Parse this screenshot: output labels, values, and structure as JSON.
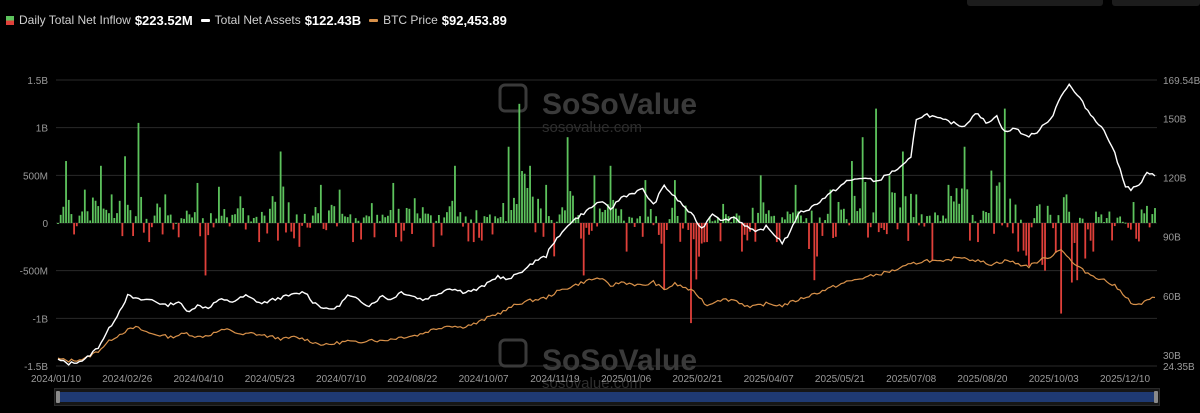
{
  "legend": {
    "inflow_label": "Daily Total Net Inflow",
    "inflow_value": "$223.52M",
    "assets_label": "Total Net Assets",
    "assets_value": "$122.43B",
    "btc_label": "BTC Price",
    "btc_value": "$92,453.89"
  },
  "watermark": {
    "brand": "SoSoValue",
    "url": "sosovalue.com"
  },
  "colors": {
    "inflow_positive": "#5dc35d",
    "inflow_negative": "#e0403a",
    "assets_line": "#ffffff",
    "btc_line": "#d8914a",
    "scroll_track": "#1f3a73"
  },
  "chart_data": {
    "type": "bar",
    "x_ticks": [
      "2024/01/10",
      "2024/02/26",
      "2024/04/10",
      "2024/05/23",
      "2024/07/10",
      "2024/08/22",
      "2024/10/07",
      "2024/11/19",
      "2025/01/06",
      "2025/02/21",
      "2025/04/07",
      "2025/05/21",
      "2025/07/08",
      "2025/08/20",
      "2025/10/03",
      "2025/12/10"
    ],
    "y_left": {
      "ticks": [
        "-1.5B",
        "-1B",
        "-500M",
        "0",
        "500M",
        "1B",
        "1.5B"
      ],
      "min": -1500,
      "max": 1500,
      "unit": "M"
    },
    "y_right": {
      "ticks": [
        "24.35B",
        "30B",
        "60B",
        "90B",
        "120B",
        "150B",
        "169.54B"
      ],
      "min": 24.35,
      "max": 169.54,
      "unit": "B"
    },
    "grid": true,
    "series": [
      {
        "name": "Daily Total Net Inflow",
        "type": "bar",
        "keypoints_M": [
          [
            0,
            0
          ],
          [
            3,
            650
          ],
          [
            6,
            -120
          ],
          [
            10,
            350
          ],
          [
            16,
            600
          ],
          [
            20,
            300
          ],
          [
            25,
            700
          ],
          [
            30,
            1050
          ],
          [
            34,
            -200
          ],
          [
            40,
            300
          ],
          [
            45,
            -150
          ],
          [
            52,
            420
          ],
          [
            55,
            -550
          ],
          [
            60,
            380
          ],
          [
            68,
            280
          ],
          [
            75,
            -200
          ],
          [
            83,
            750
          ],
          [
            90,
            -250
          ],
          [
            98,
            400
          ],
          [
            105,
            350
          ],
          [
            110,
            -200
          ],
          [
            118,
            -150
          ],
          [
            125,
            420
          ],
          [
            133,
            260
          ],
          [
            140,
            -250
          ],
          [
            148,
            600
          ],
          [
            155,
            -200
          ],
          [
            162,
            -120
          ],
          [
            168,
            800
          ],
          [
            172,
            1250
          ],
          [
            176,
            600
          ],
          [
            182,
            400
          ],
          [
            185,
            -350
          ],
          [
            190,
            900
          ],
          [
            196,
            -550
          ],
          [
            200,
            500
          ],
          [
            206,
            600
          ],
          [
            212,
            -300
          ],
          [
            219,
            450
          ],
          [
            226,
            -700
          ],
          [
            230,
            450
          ],
          [
            236,
            -1050
          ],
          [
            242,
            -200
          ],
          [
            248,
            200
          ],
          [
            255,
            -300
          ],
          [
            262,
            500
          ],
          [
            268,
            -200
          ],
          [
            275,
            400
          ],
          [
            282,
            -600
          ],
          [
            288,
            350
          ],
          [
            296,
            650
          ],
          [
            300,
            900
          ],
          [
            305,
            1200
          ],
          [
            310,
            500
          ],
          [
            315,
            750
          ],
          [
            320,
            300
          ],
          [
            326,
            -400
          ],
          [
            332,
            400
          ],
          [
            338,
            800
          ],
          [
            343,
            -200
          ],
          [
            348,
            550
          ],
          [
            353,
            1200
          ],
          [
            358,
            -300
          ],
          [
            362,
            -450
          ],
          [
            368,
            -500
          ],
          [
            374,
            -950
          ],
          [
            380,
            -600
          ],
          [
            386,
            -300
          ],
          [
            392,
            120
          ],
          [
            399,
            -50
          ],
          [
            401,
            220
          ]
        ]
      },
      {
        "name": "Total Net Assets",
        "type": "line",
        "axis": "right",
        "keypoints_B": [
          [
            0,
            27.5
          ],
          [
            4,
            25.5
          ],
          [
            10,
            27.5
          ],
          [
            15,
            34
          ],
          [
            22,
            50
          ],
          [
            26,
            60
          ],
          [
            30,
            58
          ],
          [
            35,
            58
          ],
          [
            40,
            55
          ],
          [
            45,
            57
          ],
          [
            48,
            52
          ],
          [
            52,
            55
          ],
          [
            56,
            54
          ],
          [
            60,
            58
          ],
          [
            65,
            57
          ],
          [
            70,
            60
          ],
          [
            76,
            56
          ],
          [
            80,
            58
          ],
          [
            86,
            60
          ],
          [
            92,
            62
          ],
          [
            95,
            57
          ],
          [
            100,
            53
          ],
          [
            104,
            54
          ],
          [
            108,
            60
          ],
          [
            112,
            58
          ],
          [
            116,
            55
          ],
          [
            121,
            60
          ],
          [
            124,
            58
          ],
          [
            128,
            62
          ],
          [
            132,
            60
          ],
          [
            136,
            58
          ],
          [
            140,
            60
          ],
          [
            146,
            64
          ],
          [
            151,
            62
          ],
          [
            156,
            63
          ],
          [
            160,
            66
          ],
          [
            164,
            70
          ],
          [
            168,
            68
          ],
          [
            172,
            72
          ],
          [
            175,
            74
          ],
          [
            178,
            78
          ],
          [
            182,
            80
          ],
          [
            184,
            86
          ],
          [
            187,
            90
          ],
          [
            190,
            96
          ],
          [
            194,
            100
          ],
          [
            198,
            104
          ],
          [
            202,
            108
          ],
          [
            206,
            104
          ],
          [
            210,
            110
          ],
          [
            214,
            112
          ],
          [
            218,
            114
          ],
          [
            222,
            106
          ],
          [
            226,
            116
          ],
          [
            230,
            110
          ],
          [
            233,
            106
          ],
          [
            237,
            100
          ],
          [
            240,
            94
          ],
          [
            244,
            102
          ],
          [
            248,
            98
          ],
          [
            252,
            100
          ],
          [
            256,
            96
          ],
          [
            260,
            92
          ],
          [
            264,
            95
          ],
          [
            268,
            90
          ],
          [
            270,
            87
          ],
          [
            273,
            92
          ],
          [
            276,
            102
          ],
          [
            280,
            104
          ],
          [
            284,
            108
          ],
          [
            288,
            112
          ],
          [
            294,
            118
          ],
          [
            300,
            120
          ],
          [
            305,
            118
          ],
          [
            310,
            122
          ],
          [
            315,
            126
          ],
          [
            318,
            130
          ],
          [
            320,
            150
          ],
          [
            324,
            152
          ],
          [
            328,
            150
          ],
          [
            333,
            148
          ],
          [
            338,
            146
          ],
          [
            342,
            153
          ],
          [
            346,
            148
          ],
          [
            350,
            151
          ],
          [
            353,
            143
          ],
          [
            357,
            145
          ],
          [
            361,
            141
          ],
          [
            364,
            142
          ],
          [
            368,
            147
          ],
          [
            371,
            152
          ],
          [
            374,
            162
          ],
          [
            377,
            167
          ],
          [
            381,
            160
          ],
          [
            385,
            152
          ],
          [
            389,
            146
          ],
          [
            393,
            136
          ],
          [
            396,
            124
          ],
          [
            398,
            116
          ],
          [
            400,
            114
          ],
          [
            403,
            116
          ],
          [
            406,
            122
          ],
          [
            409,
            121
          ]
        ]
      },
      {
        "name": "BTC Price",
        "type": "line",
        "axis": "right",
        "keypoints_B": [
          [
            0,
            28
          ],
          [
            4,
            27
          ],
          [
            10,
            28
          ],
          [
            15,
            32
          ],
          [
            20,
            38
          ],
          [
            25,
            42
          ],
          [
            29,
            44
          ],
          [
            34,
            41
          ],
          [
            38,
            40
          ],
          [
            42,
            39
          ],
          [
            48,
            41
          ],
          [
            52,
            39
          ],
          [
            56,
            40
          ],
          [
            60,
            42
          ],
          [
            64,
            43
          ],
          [
            68,
            40
          ],
          [
            72,
            41
          ],
          [
            76,
            40
          ],
          [
            80,
            39
          ],
          [
            84,
            38
          ],
          [
            88,
            39
          ],
          [
            92,
            38
          ],
          [
            96,
            36
          ],
          [
            100,
            35
          ],
          [
            104,
            36
          ],
          [
            108,
            37
          ],
          [
            112,
            36
          ],
          [
            116,
            38
          ],
          [
            120,
            37
          ],
          [
            124,
            38
          ],
          [
            128,
            39
          ],
          [
            134,
            40
          ],
          [
            140,
            43
          ],
          [
            146,
            45
          ],
          [
            150,
            44
          ],
          [
            156,
            46
          ],
          [
            162,
            50
          ],
          [
            166,
            52
          ],
          [
            170,
            55
          ],
          [
            174,
            57
          ],
          [
            178,
            58
          ],
          [
            182,
            59
          ],
          [
            186,
            62
          ],
          [
            190,
            64
          ],
          [
            194,
            66
          ],
          [
            198,
            68
          ],
          [
            202,
            69
          ],
          [
            206,
            65
          ],
          [
            210,
            67
          ],
          [
            214,
            66
          ],
          [
            218,
            65
          ],
          [
            222,
            67
          ],
          [
            226,
            63
          ],
          [
            230,
            66
          ],
          [
            234,
            64
          ],
          [
            238,
            61
          ],
          [
            242,
            55
          ],
          [
            246,
            58
          ],
          [
            252,
            58
          ],
          [
            258,
            54
          ],
          [
            264,
            56
          ],
          [
            270,
            55
          ],
          [
            276,
            58
          ],
          [
            282,
            61
          ],
          [
            288,
            64
          ],
          [
            294,
            67
          ],
          [
            300,
            69
          ],
          [
            306,
            71
          ],
          [
            312,
            73
          ],
          [
            318,
            76
          ],
          [
            324,
            78
          ],
          [
            330,
            77
          ],
          [
            336,
            80
          ],
          [
            342,
            78
          ],
          [
            348,
            76
          ],
          [
            354,
            78
          ],
          [
            358,
            76
          ],
          [
            362,
            75
          ],
          [
            366,
            78
          ],
          [
            370,
            80
          ],
          [
            374,
            84
          ],
          [
            378,
            77
          ],
          [
            382,
            73
          ],
          [
            386,
            70
          ],
          [
            390,
            68
          ],
          [
            394,
            65
          ],
          [
            398,
            60
          ],
          [
            401,
            55
          ],
          [
            404,
            56
          ],
          [
            407,
            58
          ],
          [
            410,
            60
          ]
        ]
      }
    ]
  }
}
